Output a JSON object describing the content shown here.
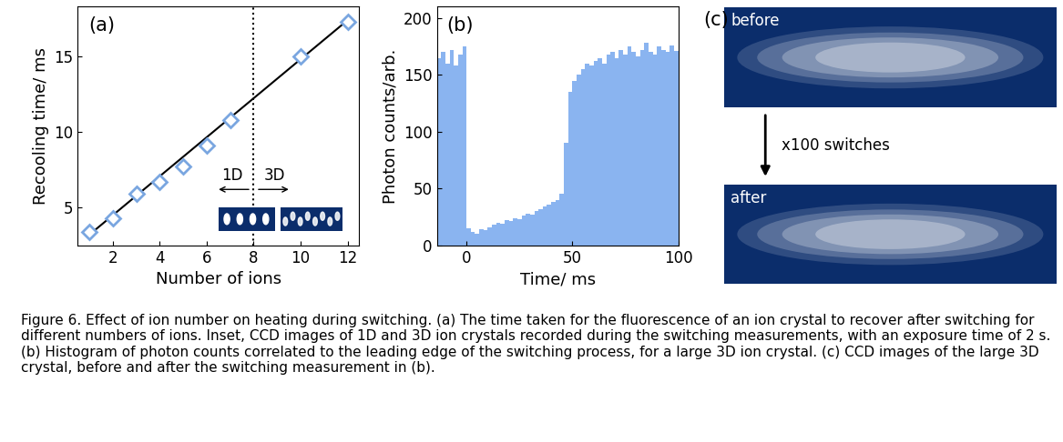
{
  "chart_data": [
    {
      "type": "scatter",
      "panel": "(a)",
      "x_label": "Number of ions",
      "y_label": "Recooling time/ ms",
      "series": [
        {
          "type": "scatter",
          "marker": "diamond",
          "color": "#7aa6e0",
          "x": [
            1,
            2,
            3,
            4,
            5,
            6,
            7,
            10,
            12
          ],
          "values": [
            3.4,
            4.3,
            5.9,
            6.7,
            7.7,
            9.1,
            10.8,
            15.0,
            17.3
          ]
        },
        {
          "type": "line",
          "line_style": "solid",
          "color": "#000000",
          "x": [
            1,
            12
          ],
          "values": [
            3.2,
            17.4
          ]
        }
      ],
      "xlim": [
        0.5,
        12.5
      ],
      "xticks": [
        2,
        4,
        6,
        8,
        10,
        12
      ],
      "ylim": [
        2.5,
        18.3
      ],
      "yticks": [
        5,
        10,
        15
      ],
      "divider_x": 8,
      "annotations": [
        "1D",
        "3D"
      ]
    },
    {
      "type": "histogram",
      "panel": "(b)",
      "x_label": "Time/ ms",
      "y_label": "Photon counts/arb.",
      "color": "#8ab4f0",
      "bins": [
        -14,
        -12,
        -10,
        -8,
        -6,
        -4,
        -2,
        0,
        2,
        4,
        6,
        8,
        10,
        12,
        14,
        16,
        18,
        20,
        22,
        24,
        26,
        28,
        30,
        32,
        34,
        36,
        38,
        40,
        42,
        44,
        46,
        48,
        50,
        52,
        54,
        56,
        58,
        60,
        62,
        64,
        66,
        68,
        70,
        72,
        74,
        76,
        78,
        80,
        82,
        84,
        86,
        88,
        90,
        92,
        94,
        96,
        98,
        100
      ],
      "counts": [
        165,
        170,
        160,
        172,
        158,
        168,
        175,
        15,
        12,
        10,
        14,
        13,
        16,
        18,
        20,
        19,
        22,
        21,
        24,
        23,
        26,
        28,
        27,
        30,
        32,
        34,
        36,
        38,
        40,
        45,
        90,
        135,
        145,
        150,
        155,
        160,
        158,
        162,
        165,
        160,
        168,
        170,
        165,
        172,
        168,
        175,
        170,
        166,
        172,
        178,
        170,
        168,
        175,
        172,
        170,
        176,
        171
      ],
      "xlim": [
        -14,
        100
      ],
      "xticks": [
        0,
        50,
        100
      ],
      "ylim": [
        0,
        210
      ],
      "yticks": [
        0,
        50,
        100,
        150,
        200
      ]
    }
  ],
  "panel_c": {
    "panel": "(c)",
    "images": [
      "before",
      "after"
    ],
    "arrow_label": "x100 switches"
  },
  "caption": "Figure 6. Effect of ion number on heating during switching. (a) The time taken for the fluorescence of an ion crystal to recover after switching for different numbers of ions. Inset, CCD images of 1D and 3D ion crystals recorded during the switching measurements, with an exposure time of 2 s. (b) Histogram of photon counts correlated to the leading edge of the switching process, for a large 3D ion crystal. (c) CCD images of the large 3D crystal, before and after the switching measurement in (b)."
}
